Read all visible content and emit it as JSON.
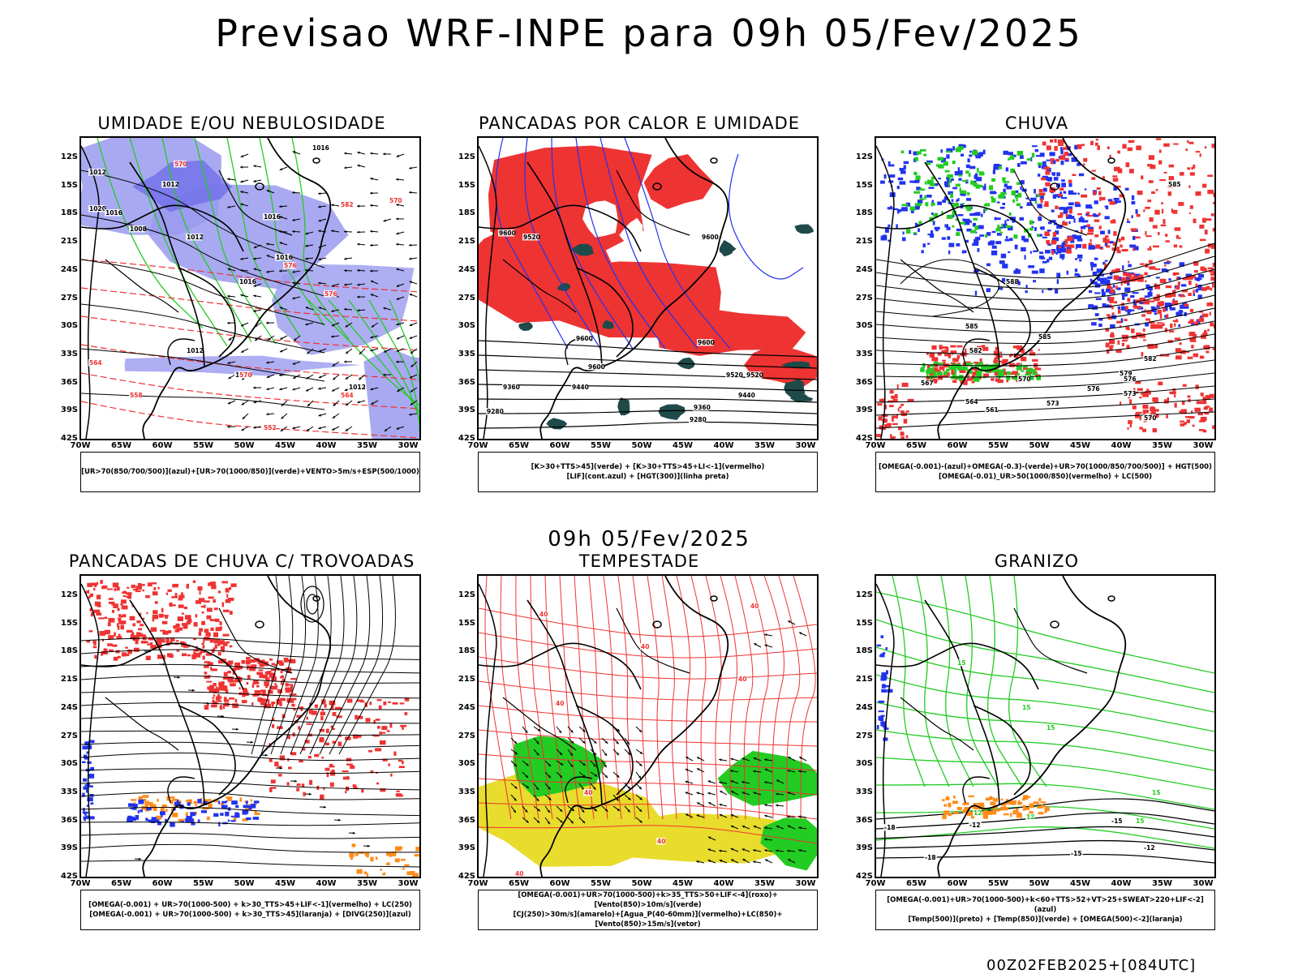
{
  "main_title": "Previsao WRF-INPE  para 09h 05/Fev/2025",
  "mid_time": "09h 05/Fev/2025",
  "footer": "00Z02FEB2025+[084UTC]",
  "lat_labels": [
    "12S",
    "15S",
    "18S",
    "21S",
    "24S",
    "27S",
    "30S",
    "33S",
    "36S",
    "39S",
    "42S"
  ],
  "lon_labels": [
    "70W",
    "65W",
    "60W",
    "55W",
    "50W",
    "45W",
    "40W",
    "35W",
    "30W"
  ],
  "colors": {
    "red": "#ee3333",
    "green": "#22cc22",
    "blue": "#2233ee",
    "lavender": "#9a9af0",
    "teal": "#1f4a4a",
    "yellow": "#e8dc2c",
    "orange": "#ff8c1a"
  },
  "panels": [
    {
      "title": "UMIDADE E/OU NEBULOSIDADE",
      "legend_line1": "[UR>70(850/700/500)](azul)+[UR>70(1000/850)](verde)+VENTO>5m/s+ESP(500/1000)",
      "legend_line2": "",
      "contour_labels": [
        "1016",
        "1012",
        "1012",
        "1020",
        "1016",
        "1008",
        "1012",
        "1016",
        "1016",
        "1016",
        "1012",
        "1016",
        "1012",
        "570",
        "576",
        "582",
        "576",
        "570",
        "564",
        "558",
        "552",
        "564",
        "570"
      ]
    },
    {
      "title": "PANCADAS POR CALOR E UMIDADE",
      "legend_line1": "[K>30+TTS>45](verde) + [K>30+TTS>45+LI<-1](vermelho)",
      "legend_line2": "[LIF](cont.azul) + [HGT(300)](linha preta)",
      "contour_labels": [
        "9600",
        "9520",
        "9600",
        "9600",
        "9600",
        "9600",
        "9520",
        "9440",
        "9360",
        "9280",
        "9520",
        "9440",
        "9360",
        "9280"
      ]
    },
    {
      "title": "CHUVA",
      "legend_line1": "[OMEGA(-0.001)-(azul)+OMEGA(-0.3)-(verde)+UR>70(1000/850/700/500)] + HGT(500)",
      "legend_line2": "[OMEGA(-0.01)_UR>50(1000/850)(vermelho) + LC(500)",
      "contour_labels": [
        "585",
        "588",
        "585",
        "582",
        "585",
        "582",
        "579",
        "576",
        "573",
        "570",
        "567",
        "564",
        "561",
        "573",
        "576",
        "570"
      ]
    },
    {
      "title": "PANCADAS DE CHUVA C/ TROVOADAS",
      "legend_line1": "[OMEGA(-0.001) + UR>70(1000-500) + k>30_TTS>45+LIF<-1](vermelho) + LC(250)",
      "legend_line2": "[OMEGA(-0.001) + UR>70(1000-500) + k>30_TTS>45](laranja) + [DIVG(250)](azul)",
      "contour_labels": []
    },
    {
      "title": "TEMPESTADE",
      "legend_line1": "[OMEGA(-0.001)+UR>70(1000-500)+k>35_TTS>50+LIF<-4](roxo)+[Vento(850)>10m/s](verde)",
      "legend_line2": "[CJ(250)>30m/s](amarelo)+[Agua_P(40-60mm)](vermelho)+LC(850)+[Vento(850)>15m/s](vetor)",
      "contour_labels": [
        "40",
        "40",
        "40",
        "40",
        "40",
        "40",
        "40",
        "40"
      ]
    },
    {
      "title": "GRANIZO",
      "legend_line1": "[OMEGA(-0.001)+UR>70(1000-500)+k<60+TTS>52+VT>25+SWEAT>220+LIF<-2](azul)",
      "legend_line2": "[Temp(500)](preto) + [Temp(850)](verde) + [OMEGA(500)<-2](laranja)",
      "contour_labels": [
        "15",
        "15",
        "15",
        "15",
        "15",
        "12",
        "-12",
        "-15",
        "-18",
        "-12",
        "12",
        "-15",
        "-18"
      ]
    }
  ]
}
